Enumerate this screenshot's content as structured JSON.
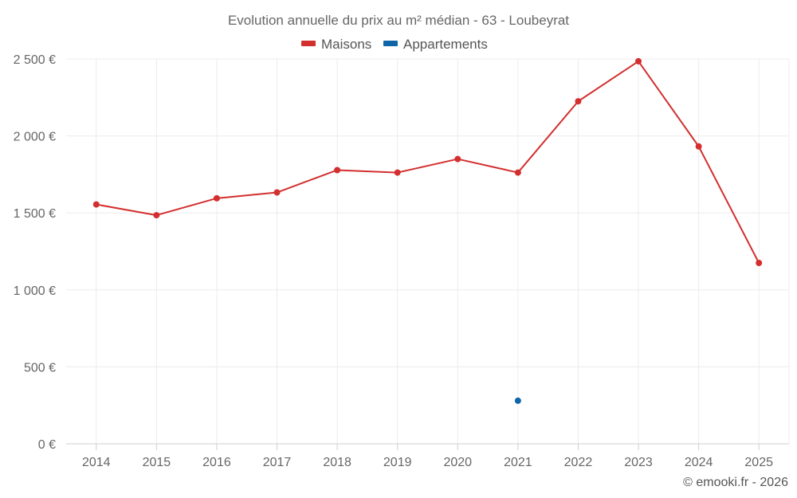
{
  "chart_data": {
    "type": "line",
    "title": "Evolution annuelle du prix au m² médian - 63 - Loubeyrat",
    "categories": [
      "2014",
      "2015",
      "2016",
      "2017",
      "2018",
      "2019",
      "2020",
      "2021",
      "2022",
      "2023",
      "2024",
      "2025"
    ],
    "series": [
      {
        "name": "Maisons",
        "color": "#d32f2f",
        "values": [
          1555,
          1485,
          1595,
          1633,
          1778,
          1762,
          1850,
          1762,
          2225,
          2485,
          1932,
          1175
        ]
      },
      {
        "name": "Appartements",
        "color": "#0e66a8",
        "values": [
          null,
          null,
          null,
          null,
          null,
          null,
          null,
          280,
          null,
          null,
          null,
          null
        ]
      }
    ],
    "ylim": [
      0,
      2500
    ],
    "yticks": [
      0,
      500,
      1000,
      1500,
      2000,
      2500
    ],
    "ytick_labels": [
      "0 €",
      "500 €",
      "1 000 €",
      "1 500 €",
      "2 000 €",
      "2 500 €"
    ],
    "xlabel": "",
    "ylabel": "",
    "grid": true,
    "legend_position": "top-center"
  },
  "credit": "© emooki.fr - 2026"
}
